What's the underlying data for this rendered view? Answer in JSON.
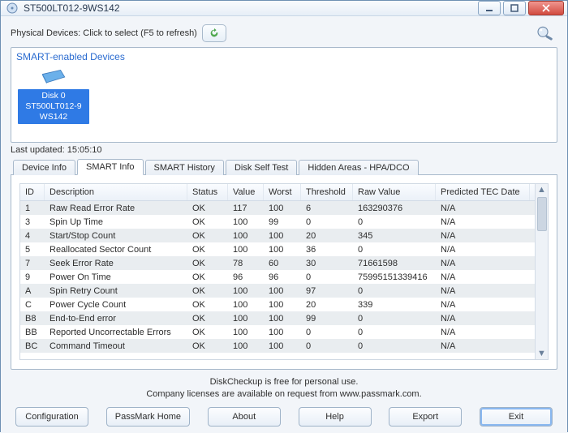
{
  "window": {
    "title": "ST500LT012-9WS142"
  },
  "topline": {
    "label": "Physical Devices: Click to select (F5 to refresh)"
  },
  "device_box": {
    "title": "SMART-enabled Devices",
    "selected": {
      "line1": "Disk 0",
      "line2": "ST500LT012-9",
      "line3": "WS142"
    }
  },
  "last_updated": {
    "label": "Last updated: 15:05:10"
  },
  "tabs": {
    "device_info": "Device Info",
    "smart_info": "SMART Info",
    "smart_history": "SMART History",
    "disk_self_test": "Disk Self Test",
    "hidden_areas": "Hidden Areas - HPA/DCO"
  },
  "columns": {
    "id": "ID",
    "desc": "Description",
    "status": "Status",
    "value": "Value",
    "worst": "Worst",
    "threshold": "Threshold",
    "raw": "Raw Value",
    "tec": "Predicted TEC Date"
  },
  "rows": [
    {
      "id": "1",
      "desc": "Raw Read Error Rate",
      "status": "OK",
      "value": "117",
      "worst": "100",
      "threshold": "6",
      "raw": "163290376",
      "tec": "N/A"
    },
    {
      "id": "3",
      "desc": "Spin Up Time",
      "status": "OK",
      "value": "100",
      "worst": "99",
      "threshold": "0",
      "raw": "0",
      "tec": "N/A"
    },
    {
      "id": "4",
      "desc": "Start/Stop Count",
      "status": "OK",
      "value": "100",
      "worst": "100",
      "threshold": "20",
      "raw": "345",
      "tec": "N/A"
    },
    {
      "id": "5",
      "desc": "Reallocated Sector Count",
      "status": "OK",
      "value": "100",
      "worst": "100",
      "threshold": "36",
      "raw": "0",
      "tec": "N/A"
    },
    {
      "id": "7",
      "desc": "Seek Error Rate",
      "status": "OK",
      "value": "78",
      "worst": "60",
      "threshold": "30",
      "raw": "71661598",
      "tec": "N/A"
    },
    {
      "id": "9",
      "desc": "Power On Time",
      "status": "OK",
      "value": "96",
      "worst": "96",
      "threshold": "0",
      "raw": "75995151339416",
      "tec": "N/A"
    },
    {
      "id": "A",
      "desc": "Spin Retry Count",
      "status": "OK",
      "value": "100",
      "worst": "100",
      "threshold": "97",
      "raw": "0",
      "tec": "N/A"
    },
    {
      "id": "C",
      "desc": "Power Cycle Count",
      "status": "OK",
      "value": "100",
      "worst": "100",
      "threshold": "20",
      "raw": "339",
      "tec": "N/A"
    },
    {
      "id": "B8",
      "desc": "End-to-End error",
      "status": "OK",
      "value": "100",
      "worst": "100",
      "threshold": "99",
      "raw": "0",
      "tec": "N/A"
    },
    {
      "id": "BB",
      "desc": "Reported Uncorrectable Errors",
      "status": "OK",
      "value": "100",
      "worst": "100",
      "threshold": "0",
      "raw": "0",
      "tec": "N/A"
    },
    {
      "id": "BC",
      "desc": "Command Timeout",
      "status": "OK",
      "value": "100",
      "worst": "100",
      "threshold": "0",
      "raw": "0",
      "tec": "N/A"
    }
  ],
  "footnote": {
    "line1": "DiskCheckup is free for personal use.",
    "line2": "Company licenses are available on request from www.passmark.com."
  },
  "buttons": {
    "config": "Configuration",
    "home": "PassMark Home",
    "about": "About",
    "help": "Help",
    "export": "Export",
    "exit": "Exit"
  },
  "colors": {
    "accent": "#2f7ae5",
    "row_alt": "#e9edf0",
    "border": "#a8b9cb"
  }
}
